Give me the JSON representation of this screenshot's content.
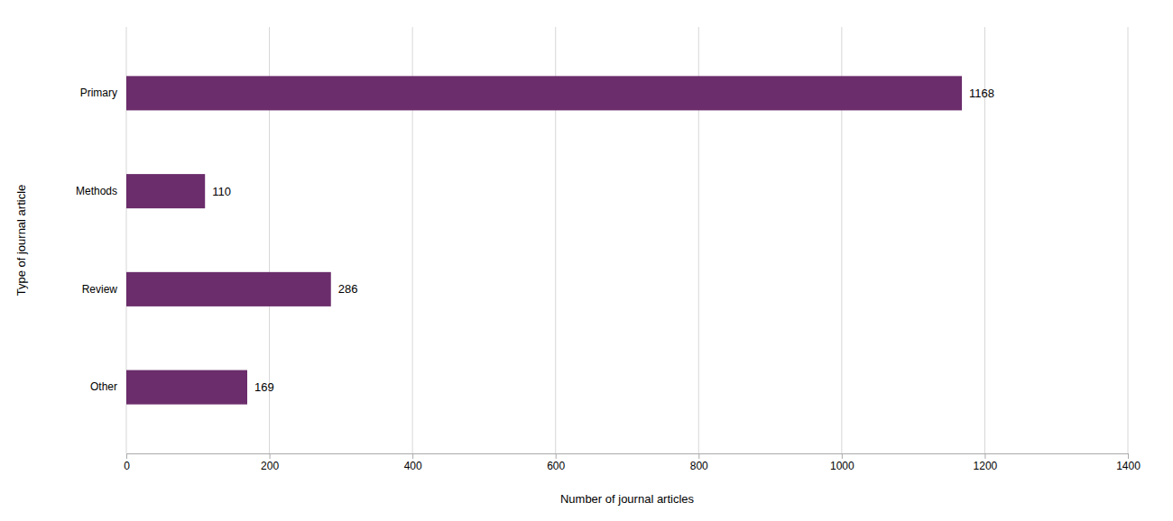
{
  "chart_data": {
    "type": "bar",
    "orientation": "horizontal",
    "categories": [
      "Primary",
      "Methods",
      "Review",
      "Other"
    ],
    "values": [
      1168,
      110,
      286,
      169
    ],
    "color": "#6b2d6b",
    "xlabel": "Number of journal articles",
    "ylabel": "Type of journal article",
    "xlim": [
      0,
      1400
    ],
    "xticks": [
      0,
      200,
      400,
      600,
      800,
      1000,
      1200,
      1400
    ],
    "grid": true,
    "data_labels": true
  }
}
